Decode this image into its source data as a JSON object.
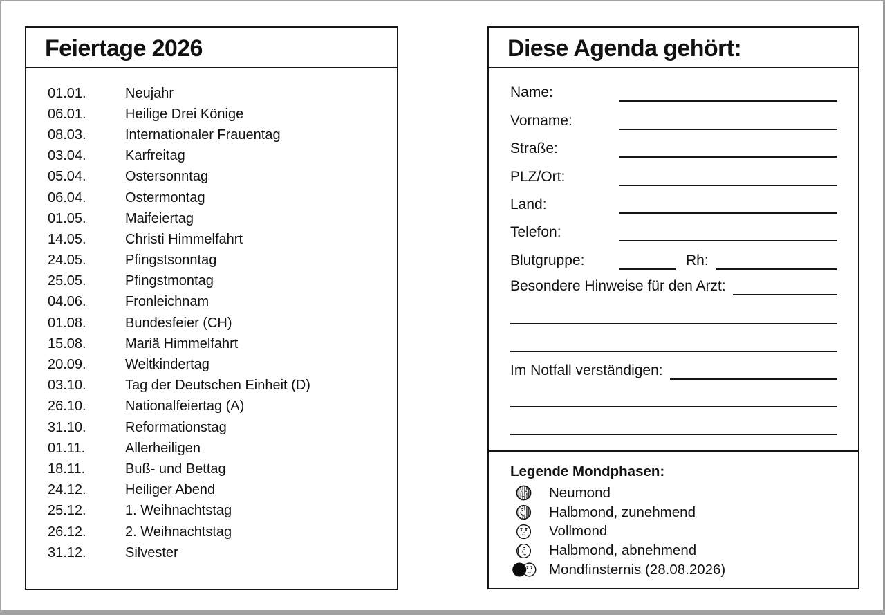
{
  "left_panel": {
    "title": "Feiertage 2026",
    "holidays": [
      {
        "date": "01.01.",
        "name": "Neujahr"
      },
      {
        "date": "06.01.",
        "name": "Heilige Drei Könige"
      },
      {
        "date": "08.03.",
        "name": "Internationaler Frauentag"
      },
      {
        "date": "03.04.",
        "name": "Karfreitag"
      },
      {
        "date": "05.04.",
        "name": "Ostersonntag"
      },
      {
        "date": "06.04.",
        "name": "Ostermontag"
      },
      {
        "date": "01.05.",
        "name": "Maifeiertag"
      },
      {
        "date": "14.05.",
        "name": "Christi Himmelfahrt"
      },
      {
        "date": "24.05.",
        "name": "Pfingstsonntag"
      },
      {
        "date": "25.05.",
        "name": "Pfingstmontag"
      },
      {
        "date": "04.06.",
        "name": "Fronleichnam"
      },
      {
        "date": "01.08.",
        "name": "Bundesfeier (CH)"
      },
      {
        "date": "15.08.",
        "name": "Mariä Himmelfahrt"
      },
      {
        "date": "20.09.",
        "name": "Weltkindertag"
      },
      {
        "date": "03.10.",
        "name": "Tag der Deutschen Einheit (D)"
      },
      {
        "date": "26.10.",
        "name": "Nationalfeiertag (A)"
      },
      {
        "date": "31.10.",
        "name": "Reformationstag"
      },
      {
        "date": "01.11.",
        "name": "Allerheiligen"
      },
      {
        "date": "18.11.",
        "name": "Buß- und Bettag"
      },
      {
        "date": "24.12.",
        "name": "Heiliger Abend"
      },
      {
        "date": "25.12.",
        "name": "1. Weihnachtstag"
      },
      {
        "date": "26.12.",
        "name": "2. Weihnachtstag"
      },
      {
        "date": "31.12.",
        "name": "Silvester"
      }
    ]
  },
  "right_panel": {
    "title": "Diese Agenda gehört:",
    "fields": [
      {
        "label": "Name:"
      },
      {
        "label": "Vorname:"
      },
      {
        "label": "Straße:"
      },
      {
        "label": "PLZ/Ort:"
      },
      {
        "label": "Land:"
      },
      {
        "label": "Telefon:"
      }
    ],
    "blood_group_label": "Blutgruppe:",
    "rh_label": "Rh:",
    "doctor_notes_label": "Besondere Hinweise für den Arzt:",
    "emergency_label": "Im Notfall verständigen:"
  },
  "legend": {
    "title": "Legende Mondphasen:",
    "items": [
      {
        "icon": "new-moon-icon",
        "label": "Neumond"
      },
      {
        "icon": "waxing-half-moon-icon",
        "label": "Halbmond, zunehmend"
      },
      {
        "icon": "full-moon-icon",
        "label": "Vollmond"
      },
      {
        "icon": "waning-half-moon-icon",
        "label": "Halbmond, abnehmend"
      },
      {
        "icon": "lunar-eclipse-icon",
        "label": "Mondfinsternis (28.08.2026)"
      }
    ]
  },
  "colors": {
    "ink": "#121212",
    "panel_border": "#141414",
    "page_edge_gray": "#a1a1a1",
    "background": "#ffffff"
  }
}
